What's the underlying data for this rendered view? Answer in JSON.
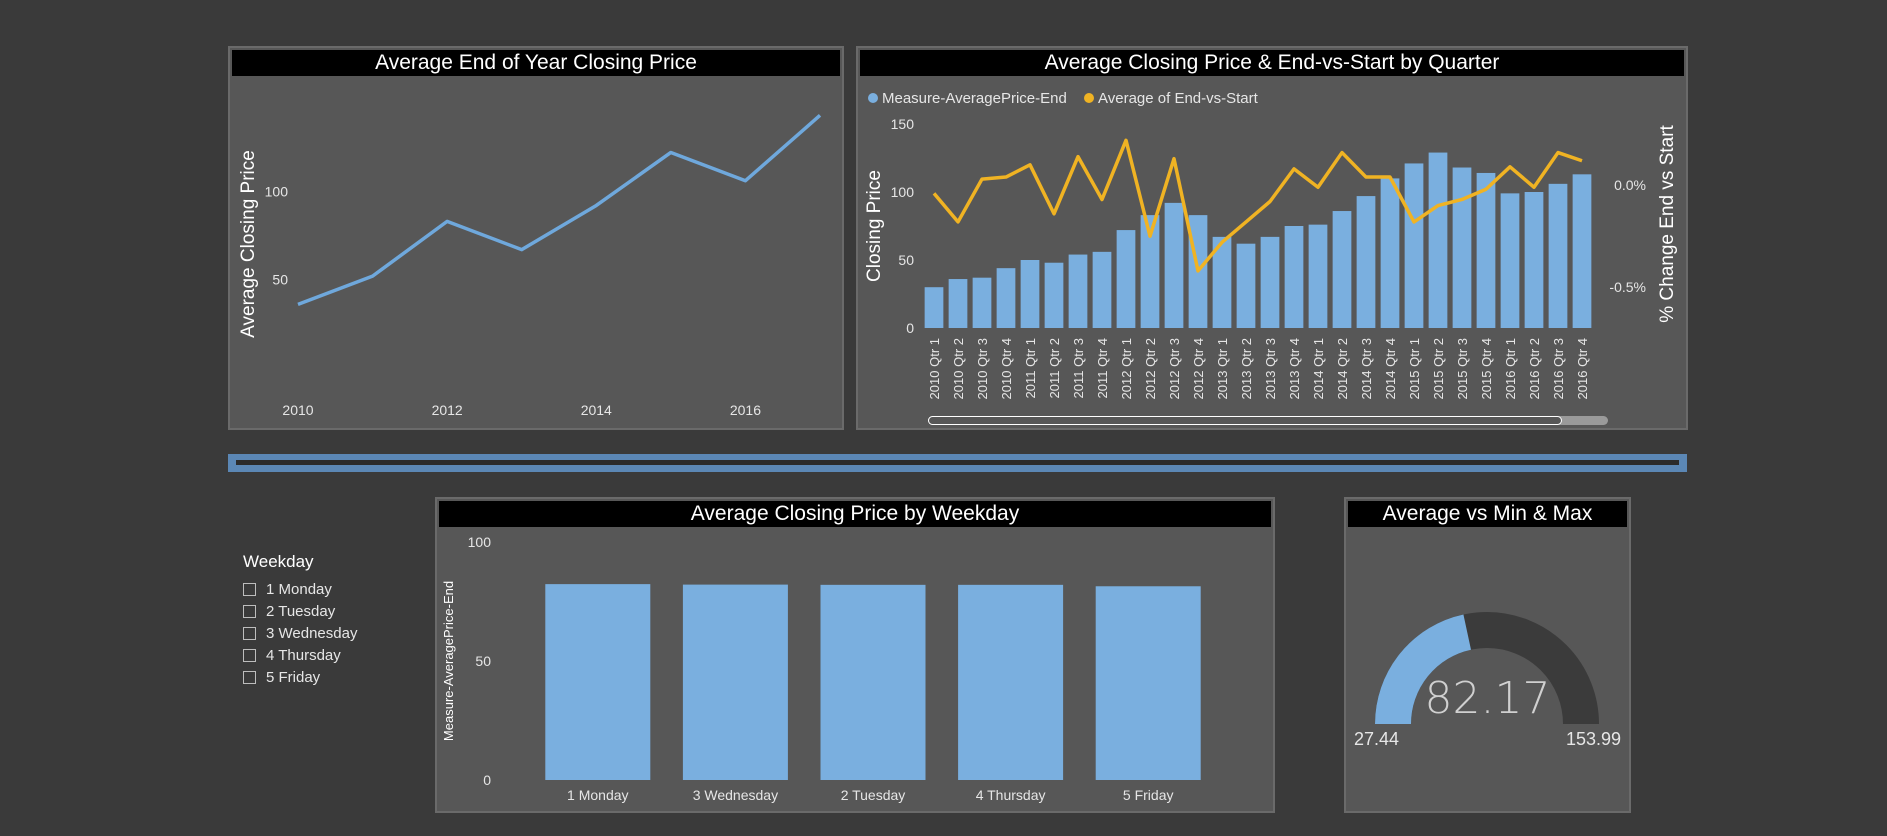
{
  "colors": {
    "bar": "#7aafdf",
    "line_blue": "#6fa8dc",
    "line_orange": "#f0b323",
    "gauge_track": "#3b3b3b"
  },
  "yearly": {
    "title": "Average End of Year Closing Price",
    "chart_data": {
      "type": "line",
      "x": [
        2010,
        2011,
        2012,
        2013,
        2014,
        2015,
        2016,
        2017
      ],
      "values": [
        36,
        52,
        83,
        67,
        92,
        122,
        106,
        143
      ],
      "ylabel": "Average Closing Price",
      "yticks": [
        "50",
        "100"
      ],
      "xticks": [
        "2010",
        "2012",
        "2014",
        "2016"
      ],
      "xlim": [
        2010,
        2017
      ],
      "ylim": [
        0,
        150
      ]
    }
  },
  "quarterly": {
    "title": "Average Closing Price & End-vs-Start by Quarter",
    "chart_data": {
      "type": "bar",
      "categories": [
        "2010 Qtr 1",
        "2010 Qtr 2",
        "2010 Qtr 3",
        "2010 Qtr 4",
        "2011 Qtr 1",
        "2011 Qtr 2",
        "2011 Qtr 3",
        "2011 Qtr 4",
        "2012 Qtr 1",
        "2012 Qtr 2",
        "2012 Qtr 3",
        "2012 Qtr 4",
        "2013 Qtr 1",
        "2013 Qtr 2",
        "2013 Qtr 3",
        "2013 Qtr 4",
        "2014 Qtr 1",
        "2014 Qtr 2",
        "2014 Qtr 3",
        "2014 Qtr 4",
        "2015 Qtr 1",
        "2015 Qtr 2",
        "2015 Qtr 3",
        "2015 Qtr 4",
        "2016 Qtr 1",
        "2016 Qtr 2",
        "2016 Qtr 3",
        "2016 Qtr 4"
      ],
      "series": [
        {
          "name": "Measure-AveragePrice-End",
          "values": [
            30,
            36,
            37,
            44,
            50,
            48,
            54,
            56,
            72,
            83,
            92,
            83,
            67,
            62,
            67,
            75,
            76,
            86,
            97,
            110,
            121,
            129,
            118,
            114,
            99,
            100,
            106,
            113
          ]
        },
        {
          "name": "Average of End-vs-Start",
          "values": [
            -0.04,
            -0.18,
            0.03,
            0.04,
            0.1,
            -0.14,
            0.14,
            -0.07,
            0.22,
            -0.25,
            0.13,
            -0.42,
            -0.28,
            -0.18,
            -0.08,
            0.08,
            -0.01,
            0.16,
            0.04,
            0.04,
            -0.18,
            -0.1,
            -0.07,
            -0.02,
            0.09,
            -0.01,
            0.16,
            0.12
          ]
        }
      ],
      "ylabel": "Closing Price",
      "ylabel_right": "% Change End vs Start",
      "yticks": [
        "0",
        "50",
        "100",
        "150"
      ],
      "yticks_right": [
        "0.0%",
        "-0.5%"
      ],
      "ylim": [
        0,
        150
      ],
      "ylim_right": [
        -0.7,
        0.3
      ]
    }
  },
  "weekday": {
    "title": "Average Closing Price by Weekday",
    "chart_data": {
      "type": "bar",
      "categories": [
        "1 Monday",
        "3 Wednesday",
        "2 Tuesday",
        "4 Thursday",
        "5 Friday"
      ],
      "values": [
        82.3,
        82.1,
        82.0,
        82.0,
        81.4
      ],
      "ylabel": "Measure-AveragePrice-End",
      "yticks": [
        "0",
        "50",
        "100"
      ],
      "ylim": [
        0,
        100
      ]
    }
  },
  "slicer": {
    "title": "Weekday",
    "items": [
      "1 Monday",
      "2 Tuesday",
      "3 Wednesday",
      "4 Thursday",
      "5 Friday"
    ]
  },
  "gauge": {
    "title": "Average vs Min & Max",
    "value": 82.17,
    "value_label": "82.17",
    "min": 27.44,
    "min_label": "27.44",
    "max": 153.99,
    "max_label": "153.99"
  }
}
